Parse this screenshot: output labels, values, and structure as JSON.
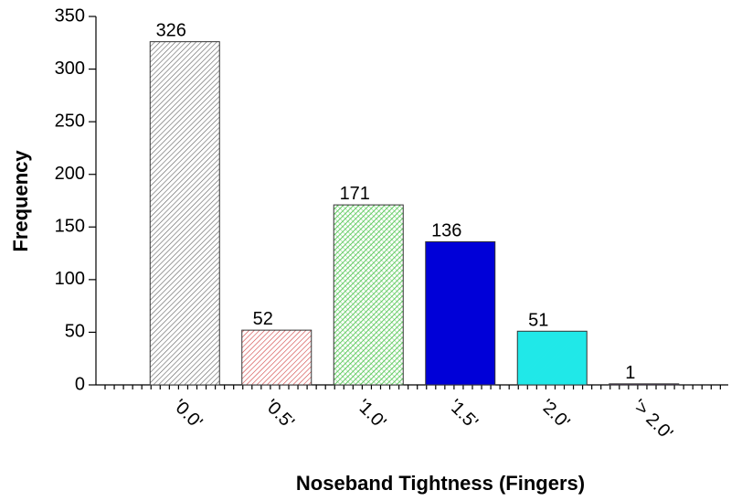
{
  "chart_data": {
    "type": "bar",
    "xlabel": "Noseband Tightness (Fingers)",
    "ylabel": "Frequency",
    "categories": [
      "'0.0'",
      "'0.5'",
      "'1.0'",
      "'1.5'",
      "'2.0'",
      "'> 2.0'"
    ],
    "values": [
      326,
      52,
      171,
      136,
      51,
      1
    ],
    "colors": [
      "#606060",
      "#d04040",
      "#40c040",
      "#0000d8",
      "#20e8e8",
      "#8040a0"
    ],
    "ylim": [
      0,
      350
    ],
    "yticks": [
      0,
      50,
      100,
      150,
      200,
      250,
      300,
      350
    ]
  }
}
